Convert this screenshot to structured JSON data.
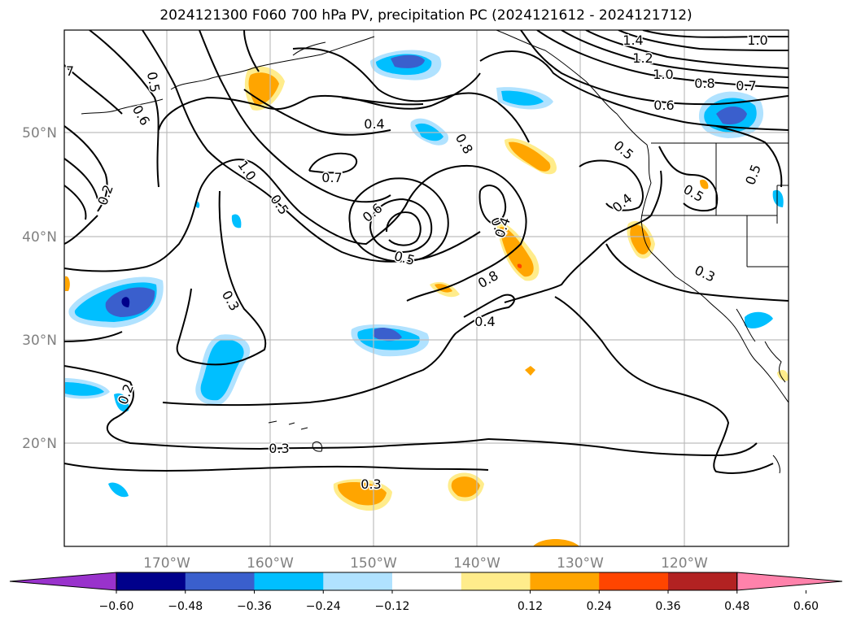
{
  "title": "2024121300 F060 700 hPa PV, precipitation PC (2024121612 - 2024121712)",
  "axes": {
    "lat_labels": [
      "50°N",
      "40°N",
      "30°N",
      "20°N"
    ],
    "lon_labels": [
      "170°W",
      "160°W",
      "150°W",
      "140°W",
      "130°W",
      "120°W"
    ]
  },
  "colorbar": {
    "ticks": [
      "−0.60",
      "−0.48",
      "−0.36",
      "−0.24",
      "−0.12",
      "0.12",
      "0.24",
      "0.36",
      "0.48",
      "0.60"
    ],
    "colors": [
      "#9932cc",
      "#00008b",
      "#3a5fcd",
      "#00bfff",
      "#b0e2ff",
      "#ffffff",
      "#ffec8b",
      "#ffa500",
      "#ff4500",
      "#b22222",
      "#ff82ab"
    ]
  },
  "contour_labels": [
    "1.4",
    "1.0",
    "1.2",
    "1.0",
    "0.8",
    "0.7",
    "0.6",
    "0.5",
    "0.6",
    "0.4",
    "0.8",
    "0.7",
    "1.0",
    "0.5",
    "0.6",
    "0.5",
    "0.4",
    "0.8",
    "0.4",
    "0.3",
    "0.2",
    "0.3",
    "0.3",
    "0.2",
    "0.4",
    "0.5",
    "0.3",
    "0.5",
    "0.5",
    "0.4",
    "7"
  ],
  "grid": true
}
